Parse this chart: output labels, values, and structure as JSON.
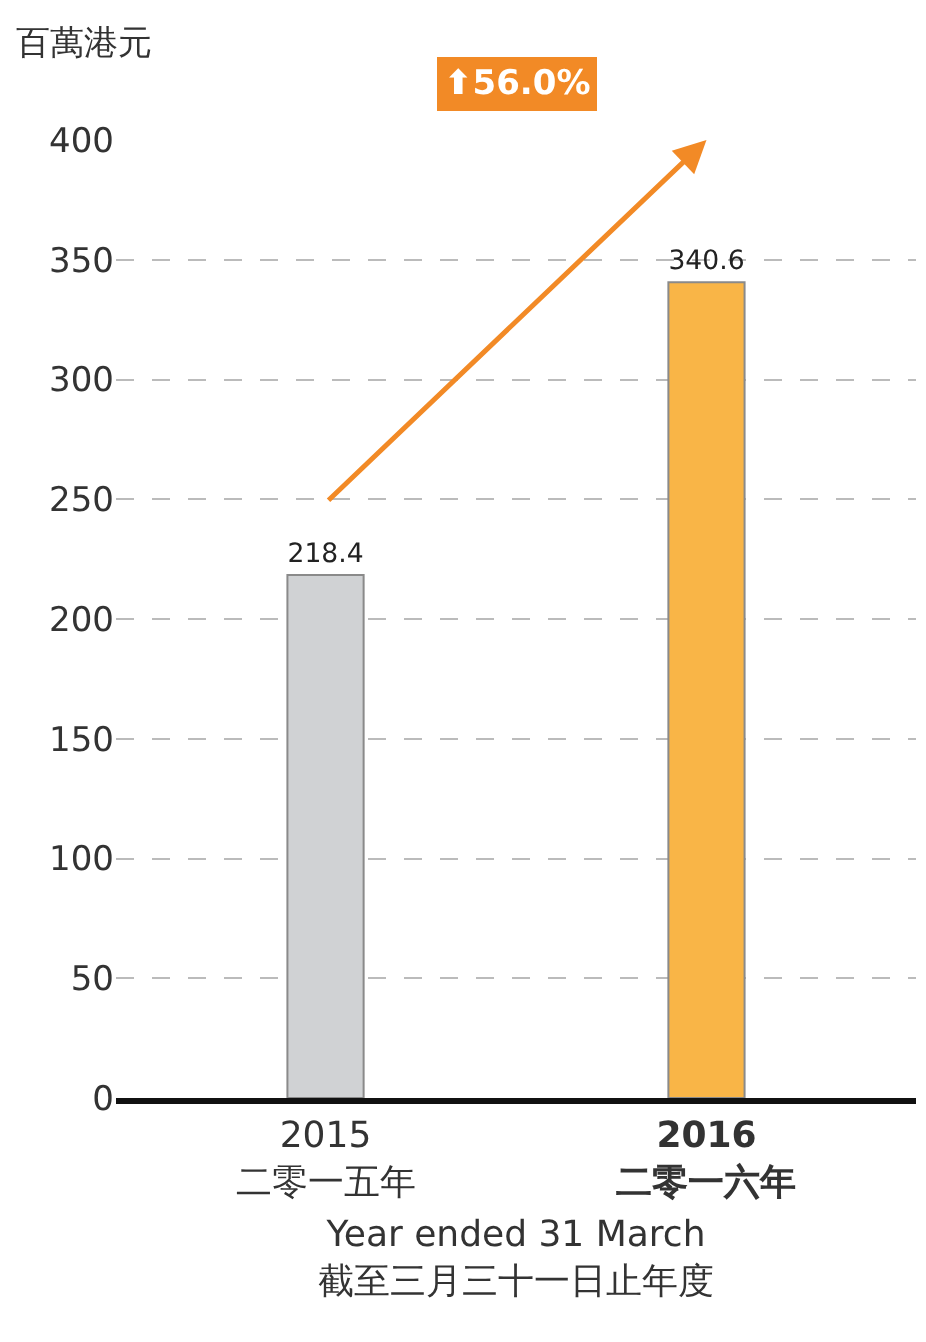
{
  "chart_data": {
    "type": "bar",
    "ylabel": "百萬港元",
    "xlabel": "Year ended 31 March\n截至三月三十一日止年度",
    "categories": [
      "2015\n二零一五年",
      "2016\n二零一六年"
    ],
    "values": [
      218.4,
      340.6
    ],
    "colors": [
      "#d0d2d4",
      "#f9b547"
    ],
    "data_labels": true,
    "ylim": [
      0,
      400
    ],
    "yticks": [
      0,
      50,
      100,
      150,
      200,
      250,
      300,
      350,
      400
    ],
    "grid": "y",
    "annotations": [
      "⬆56.0%"
    ]
  }
}
